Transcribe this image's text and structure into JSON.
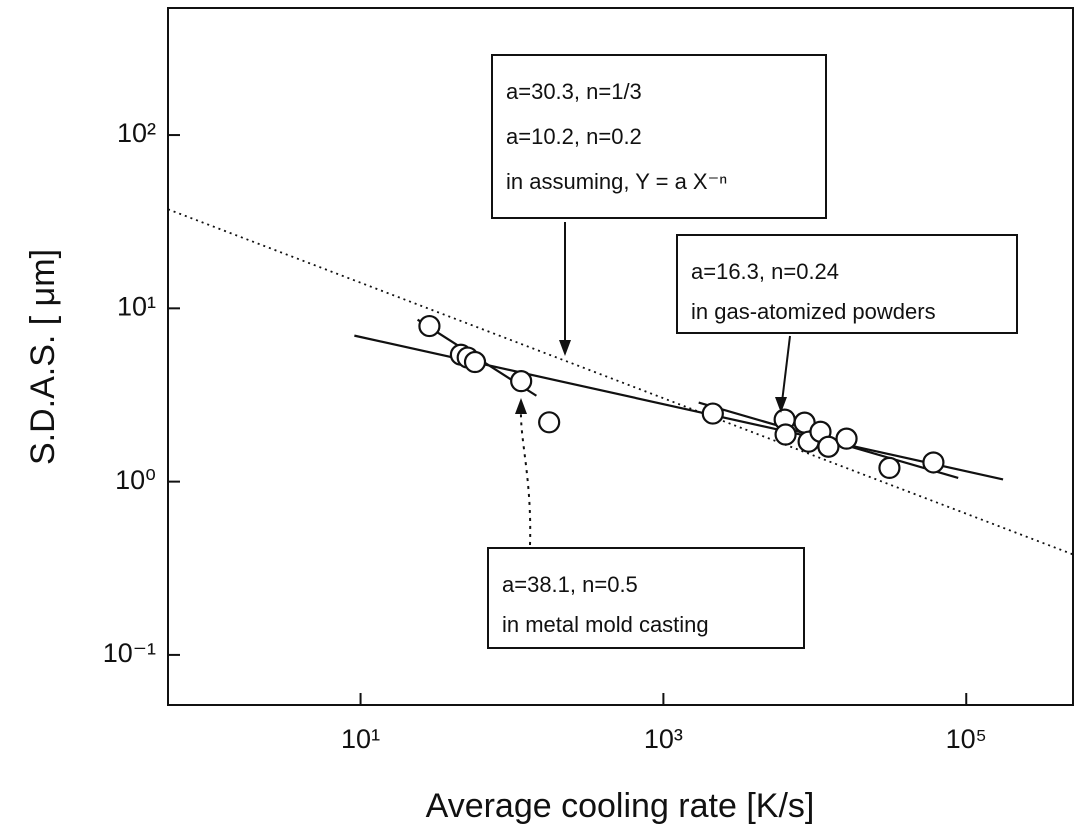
{
  "chart_data": {
    "type": "scatter",
    "xlabel": "Average cooling rate [K/s]",
    "ylabel": "S.D.A.S. [ μm]",
    "log_x": true,
    "log_y": true,
    "xlim": [
      0.535,
      507000
    ],
    "ylim": [
      0.0514,
      541
    ],
    "xticks": [
      {
        "value": 10,
        "label": "10¹"
      },
      {
        "value": 1000,
        "label": "10³"
      },
      {
        "value": 100000,
        "label": "10⁵"
      }
    ],
    "yticks": [
      {
        "value": 0.1,
        "label": "10⁻¹"
      },
      {
        "value": 1,
        "label": "10⁰"
      },
      {
        "value": 10,
        "label": "10¹"
      },
      {
        "value": 100,
        "label": "10²"
      }
    ],
    "color": "#111111",
    "points": {
      "x": [
        28.5,
        46,
        51,
        57,
        115,
        176,
        2120,
        6320,
        6410,
        8560,
        9100,
        10900,
        12300,
        16200,
        31100,
        60700
      ],
      "y": [
        7.9,
        5.4,
        5.2,
        4.9,
        3.8,
        2.2,
        2.47,
        2.28,
        1.87,
        2.19,
        1.7,
        1.94,
        1.59,
        1.77,
        1.2,
        1.29
      ]
    },
    "lines": [
      {
        "x": [
          0.535,
          507000
        ],
        "y": [
          37.3,
          0.38
        ],
        "style": "dotted"
      },
      {
        "x": [
          9.1,
          175000
        ],
        "y": [
          6.96,
          1.03
        ],
        "style": "solid"
      },
      {
        "x": [
          1710,
          88500
        ],
        "y": [
          2.86,
          1.05
        ],
        "style": "solid"
      },
      {
        "x": [
          23.8,
          145
        ],
        "y": [
          8.6,
          3.13
        ],
        "style": "solid"
      }
    ],
    "annotations": [
      {
        "lines": [
          "a=30.3, n=1/3",
          "a=10.2, n=0.2",
          "in assuming,  Y = a X⁻ⁿ"
        ]
      },
      {
        "lines": [
          "a=16.3, n=0.24",
          "in gas-atomized powders"
        ]
      },
      {
        "lines": [
          "a=38.1, n=0.5",
          "in metal mold casting"
        ]
      }
    ]
  }
}
